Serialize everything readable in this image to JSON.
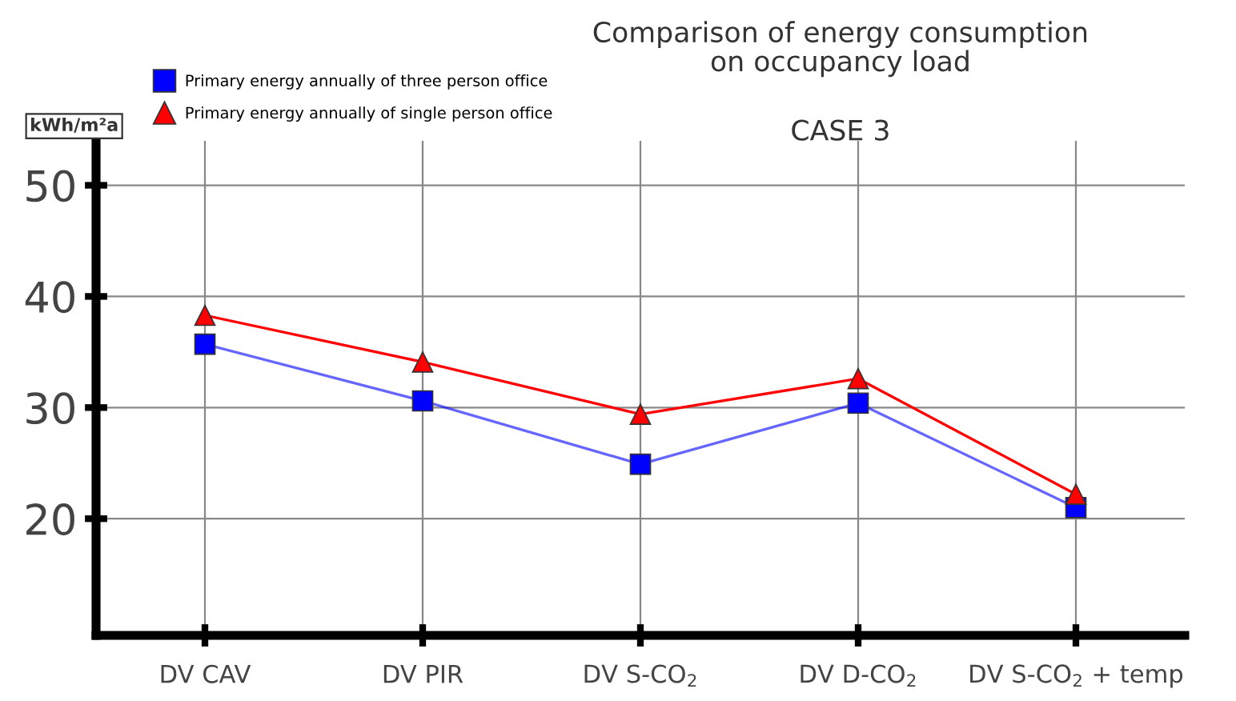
{
  "chart_data": {
    "type": "line",
    "title": "Comparison of energy consumption\non occupancy load",
    "subtitle": "CASE 3",
    "ylabel": "kWh/m²a",
    "categories": [
      "DV CAV",
      "DV PIR",
      "DV S-CO$_{2}$",
      "DV D-CO$_{2}$",
      "DV S-CO$_{2}$ + temp"
    ],
    "series": [
      {
        "name": "Primary energy annually of three person office",
        "color": "#0000ff",
        "marker": "square",
        "values": [
          35.7,
          30.6,
          24.9,
          30.4,
          21.0
        ]
      },
      {
        "name": "Primary energy annually of single person office",
        "color": "#ff0000",
        "marker": "triangle",
        "values": [
          38.3,
          34.1,
          29.4,
          32.6,
          22.2
        ]
      }
    ],
    "ylim": [
      9.5,
      54
    ],
    "yticks": [
      20,
      30,
      40,
      50
    ],
    "grid": true,
    "legend": "top left",
    "line_style": "solid"
  }
}
